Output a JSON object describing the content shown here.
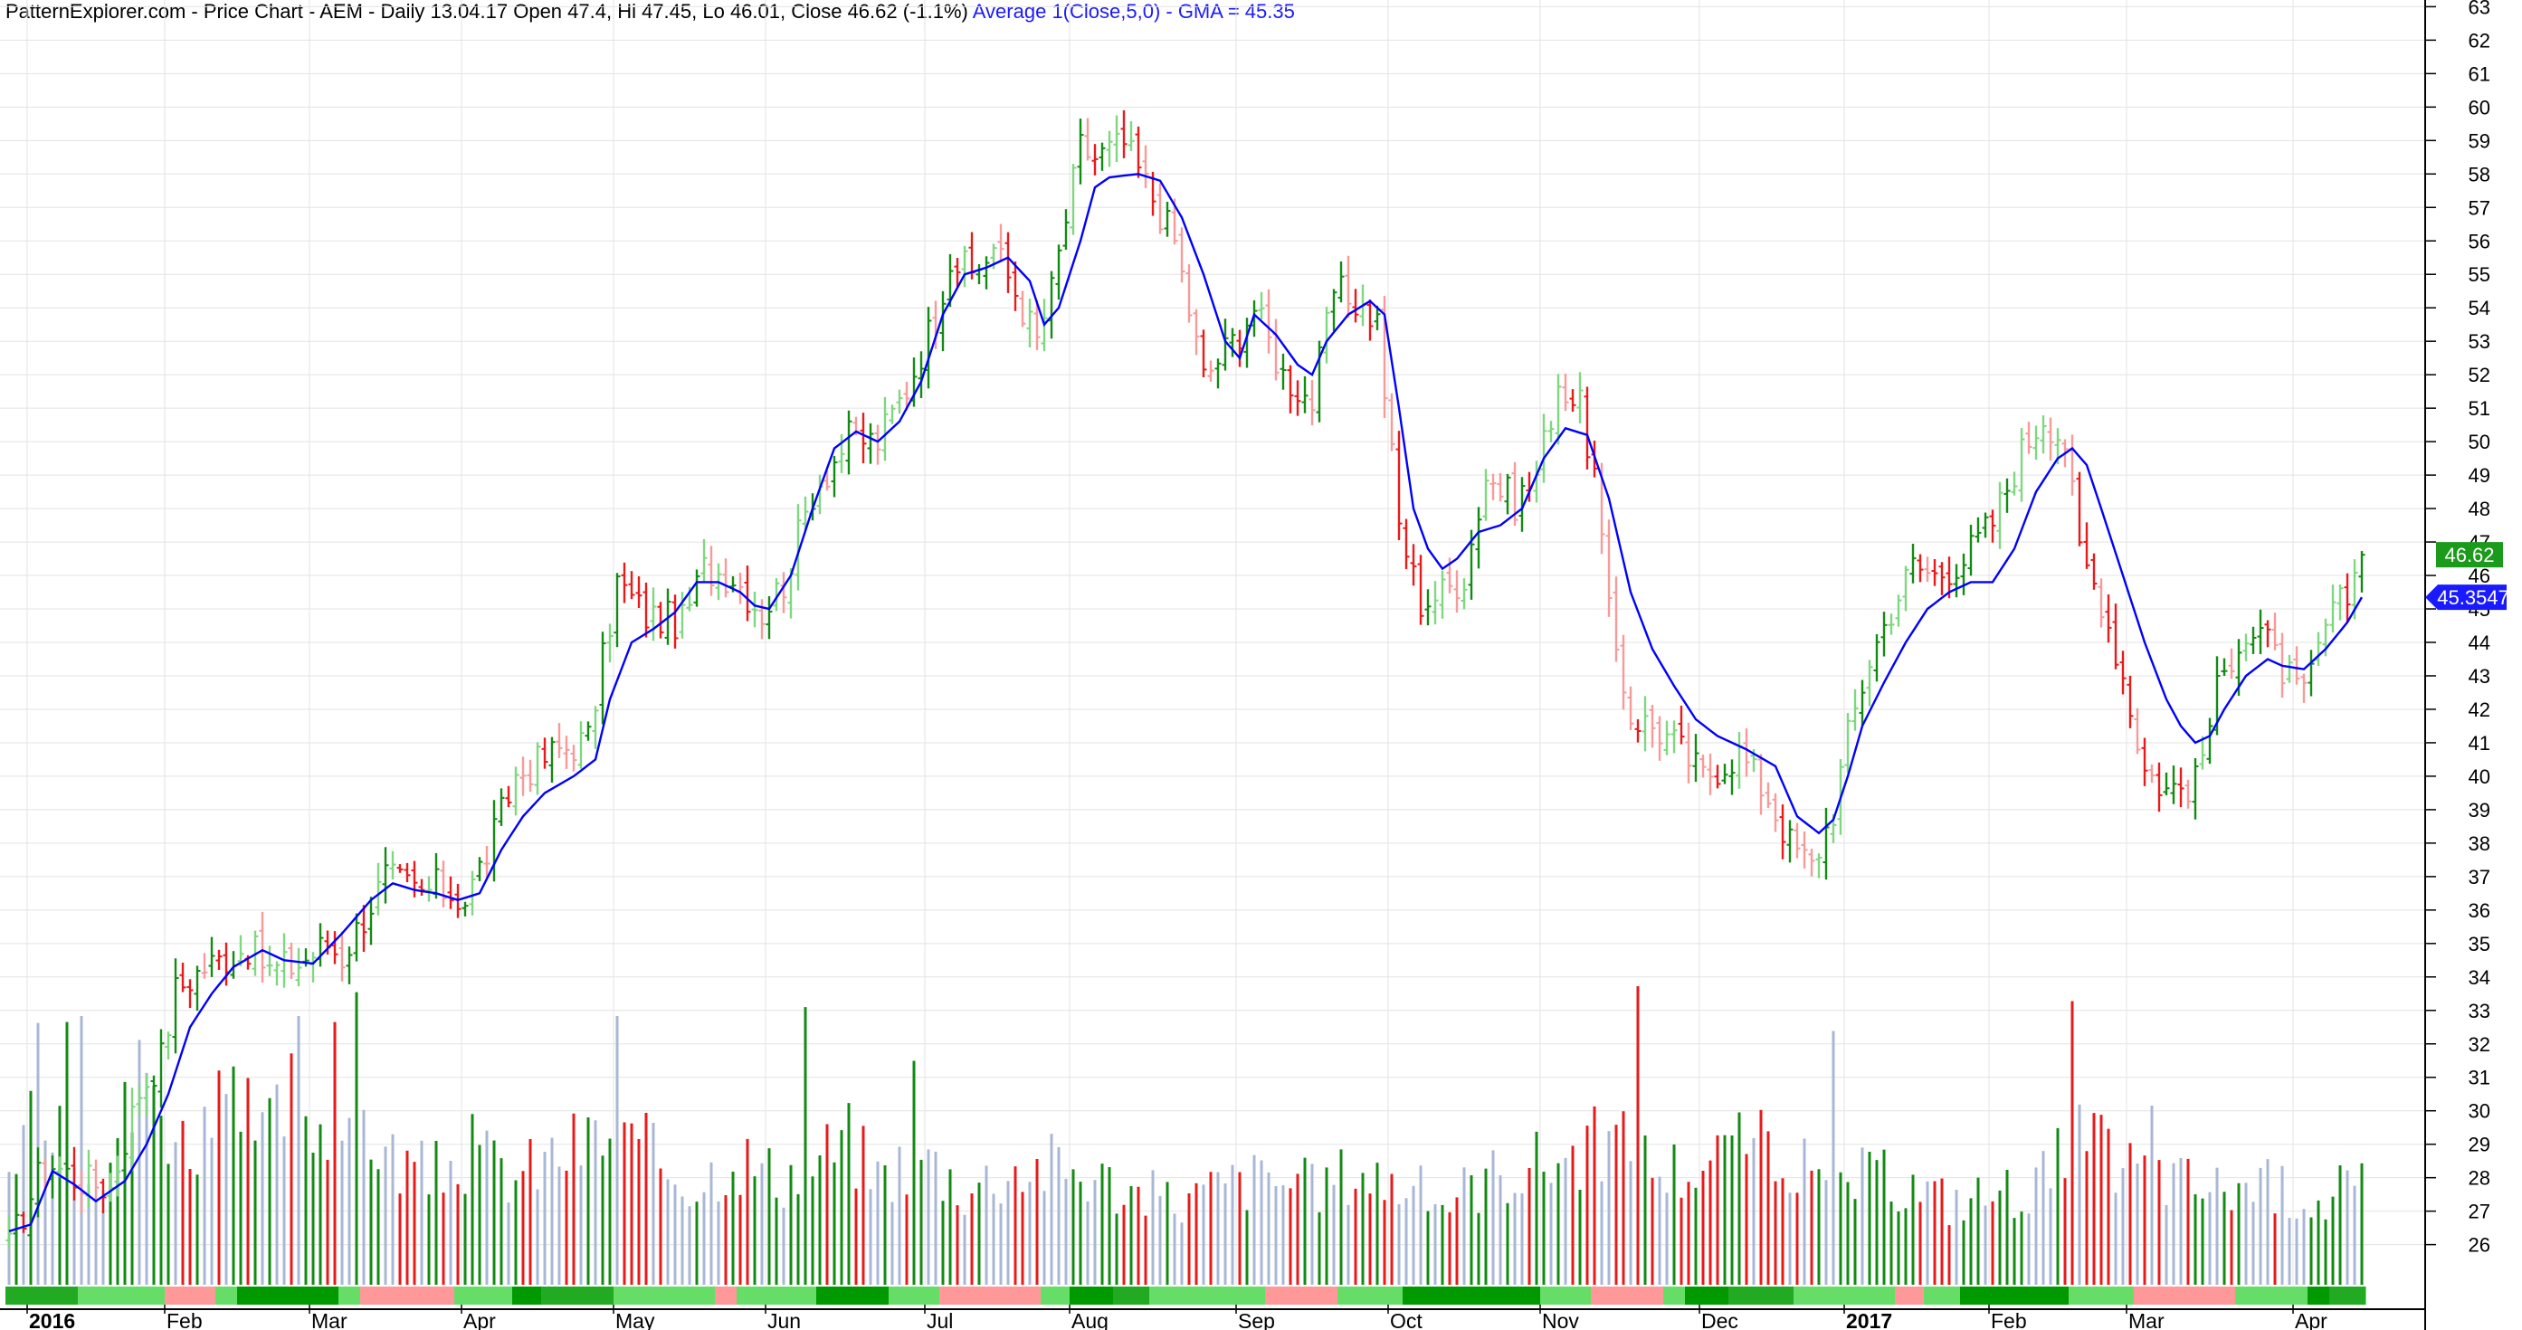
{
  "title": {
    "prefix": "PatternExplorer.com - Price Chart - AEM - Daily 13.04.17 Open 47.4, Hi 47.45, Lo 46.01, Close 46.62 (-1.1%)",
    "ma": "Average 1(Close,5,0) - GMA = 45.35"
  },
  "chart_data": {
    "type": "ohlc_bar",
    "title": "PatternExplorer.com - Price Chart - AEM - Daily",
    "ylim": [
      24.8,
      63.2
    ],
    "y_ticks": [
      26,
      27,
      28,
      29,
      30,
      31,
      32,
      33,
      34,
      35,
      36,
      37,
      38,
      39,
      40,
      41,
      42,
      43,
      44,
      45,
      46,
      47,
      48,
      49,
      50,
      51,
      52,
      53,
      54,
      55,
      56,
      57,
      58,
      59,
      60,
      61,
      62,
      63
    ],
    "month_labels": [
      {
        "label": "2016",
        "bar": 3
      },
      {
        "label": "Feb",
        "bar": 22
      },
      {
        "label": "Mar",
        "bar": 42
      },
      {
        "label": "Apr",
        "bar": 63
      },
      {
        "label": "May",
        "bar": 84
      },
      {
        "label": "Jun",
        "bar": 105
      },
      {
        "label": "Jul",
        "bar": 127
      },
      {
        "label": "Aug",
        "bar": 147
      },
      {
        "label": "Sep",
        "bar": 170
      },
      {
        "label": "Oct",
        "bar": 191
      },
      {
        "label": "Nov",
        "bar": 212
      },
      {
        "label": "Dec",
        "bar": 234
      },
      {
        "label": "2017",
        "bar": 254
      },
      {
        "label": "Feb",
        "bar": 274
      },
      {
        "label": "Mar",
        "bar": 293
      },
      {
        "label": "Apr",
        "bar": 316
      }
    ],
    "keypoints": [
      [
        0,
        25.9
      ],
      [
        4,
        28.0
      ],
      [
        6,
        28.4
      ],
      [
        9,
        28.0
      ],
      [
        14,
        27.7
      ],
      [
        18,
        30.6
      ],
      [
        21,
        31.6
      ],
      [
        23,
        33.6
      ],
      [
        27,
        34.3
      ],
      [
        30,
        34.6
      ],
      [
        33,
        34.9
      ],
      [
        36,
        34.2
      ],
      [
        40,
        34.4
      ],
      [
        44,
        35.0
      ],
      [
        46,
        34.6
      ],
      [
        52,
        37.0
      ],
      [
        57,
        36.5
      ],
      [
        59,
        36.7
      ],
      [
        63,
        36.3
      ],
      [
        66,
        37.7
      ],
      [
        70,
        40.0
      ],
      [
        76,
        40.8
      ],
      [
        80,
        41.1
      ],
      [
        84,
        45.8
      ],
      [
        88,
        44.8
      ],
      [
        93,
        44.6
      ],
      [
        96,
        46.2
      ],
      [
        100,
        46.0
      ],
      [
        104,
        44.9
      ],
      [
        107,
        45.8
      ],
      [
        111,
        48.5
      ],
      [
        116,
        50.1
      ],
      [
        120,
        50.0
      ],
      [
        124,
        51.6
      ],
      [
        128,
        53.8
      ],
      [
        130,
        55.5
      ],
      [
        133,
        55.0
      ],
      [
        136,
        55.8
      ],
      [
        139,
        54.5
      ],
      [
        142,
        53.0
      ],
      [
        144,
        54.5
      ],
      [
        148,
        58.8
      ],
      [
        150,
        58.5
      ],
      [
        154,
        58.9
      ],
      [
        158,
        57.3
      ],
      [
        161,
        56.0
      ],
      [
        165,
        51.9
      ],
      [
        169,
        53.0
      ],
      [
        172,
        54.0
      ],
      [
        176,
        52.0
      ],
      [
        180,
        51.2
      ],
      [
        183,
        54.5
      ],
      [
        186,
        54.2
      ],
      [
        189,
        53.6
      ],
      [
        192,
        47.5
      ],
      [
        195,
        45.2
      ],
      [
        198,
        45.5
      ],
      [
        201,
        46.0
      ],
      [
        204,
        49.0
      ],
      [
        208,
        48.2
      ],
      [
        211,
        49.0
      ],
      [
        214,
        51.8
      ],
      [
        217,
        51.0
      ],
      [
        219,
        49.0
      ],
      [
        221,
        44.8
      ],
      [
        224,
        41.8
      ],
      [
        227,
        41.5
      ],
      [
        230,
        41.0
      ],
      [
        234,
        40.0
      ],
      [
        239,
        40.7
      ],
      [
        243,
        39.4
      ],
      [
        246,
        38.0
      ],
      [
        249,
        37.3
      ],
      [
        252,
        39.0
      ],
      [
        254,
        41.2
      ],
      [
        257,
        43.5
      ],
      [
        260,
        45.0
      ],
      [
        263,
        46.3
      ],
      [
        266,
        46.0
      ],
      [
        270,
        46.5
      ],
      [
        274,
        47.6
      ],
      [
        278,
        49.7
      ],
      [
        281,
        50.8
      ],
      [
        284,
        50.0
      ],
      [
        286,
        46.7
      ],
      [
        289,
        45.3
      ],
      [
        292,
        43.0
      ],
      [
        295,
        40.2
      ],
      [
        298,
        39.6
      ],
      [
        302,
        39.8
      ],
      [
        305,
        42.5
      ],
      [
        308,
        44.2
      ],
      [
        311,
        44.3
      ],
      [
        314,
        43.2
      ],
      [
        317,
        42.3
      ],
      [
        320,
        44.5
      ],
      [
        323,
        45.4
      ],
      [
        325,
        46.62
      ]
    ],
    "ma_keypoints": [
      [
        0,
        26.4
      ],
      [
        3,
        26.6
      ],
      [
        6,
        28.2
      ],
      [
        9,
        27.8
      ],
      [
        12,
        27.3
      ],
      [
        16,
        27.9
      ],
      [
        19,
        29.0
      ],
      [
        22,
        30.5
      ],
      [
        25,
        32.5
      ],
      [
        28,
        33.5
      ],
      [
        31,
        34.3
      ],
      [
        35,
        34.8
      ],
      [
        38,
        34.5
      ],
      [
        42,
        34.4
      ],
      [
        46,
        35.3
      ],
      [
        50,
        36.3
      ],
      [
        53,
        36.8
      ],
      [
        56,
        36.6
      ],
      [
        59,
        36.5
      ],
      [
        62,
        36.3
      ],
      [
        65,
        36.5
      ],
      [
        68,
        37.8
      ],
      [
        71,
        38.8
      ],
      [
        74,
        39.5
      ],
      [
        78,
        40.0
      ],
      [
        81,
        40.5
      ],
      [
        83,
        42.3
      ],
      [
        86,
        44.0
      ],
      [
        89,
        44.4
      ],
      [
        92,
        44.9
      ],
      [
        95,
        45.8
      ],
      [
        98,
        45.8
      ],
      [
        101,
        45.5
      ],
      [
        103,
        45.1
      ],
      [
        105,
        45.0
      ],
      [
        108,
        46.0
      ],
      [
        111,
        48.0
      ],
      [
        114,
        49.8
      ],
      [
        117,
        50.3
      ],
      [
        120,
        50.0
      ],
      [
        123,
        50.6
      ],
      [
        126,
        51.8
      ],
      [
        129,
        53.8
      ],
      [
        132,
        55.0
      ],
      [
        135,
        55.2
      ],
      [
        138,
        55.5
      ],
      [
        141,
        54.8
      ],
      [
        143,
        53.5
      ],
      [
        145,
        54.0
      ],
      [
        148,
        56.0
      ],
      [
        150,
        57.6
      ],
      [
        152,
        57.9
      ],
      [
        156,
        58.0
      ],
      [
        159,
        57.8
      ],
      [
        162,
        56.7
      ],
      [
        165,
        55.0
      ],
      [
        168,
        53.0
      ],
      [
        170,
        52.5
      ],
      [
        172,
        53.8
      ],
      [
        175,
        53.2
      ],
      [
        178,
        52.3
      ],
      [
        180,
        52.0
      ],
      [
        182,
        53.0
      ],
      [
        185,
        53.8
      ],
      [
        188,
        54.2
      ],
      [
        190,
        53.8
      ],
      [
        192,
        51.0
      ],
      [
        194,
        48.0
      ],
      [
        196,
        46.8
      ],
      [
        198,
        46.2
      ],
      [
        200,
        46.5
      ],
      [
        203,
        47.3
      ],
      [
        206,
        47.5
      ],
      [
        209,
        48.0
      ],
      [
        212,
        49.5
      ],
      [
        215,
        50.4
      ],
      [
        218,
        50.2
      ],
      [
        221,
        48.3
      ],
      [
        224,
        45.5
      ],
      [
        227,
        43.8
      ],
      [
        230,
        42.7
      ],
      [
        233,
        41.7
      ],
      [
        236,
        41.2
      ],
      [
        240,
        40.8
      ],
      [
        244,
        40.3
      ],
      [
        247,
        38.8
      ],
      [
        250,
        38.3
      ],
      [
        252,
        38.7
      ],
      [
        254,
        40.0
      ],
      [
        256,
        41.5
      ],
      [
        259,
        42.8
      ],
      [
        262,
        44.0
      ],
      [
        265,
        45.0
      ],
      [
        268,
        45.5
      ],
      [
        271,
        45.8
      ],
      [
        274,
        45.8
      ],
      [
        277,
        46.8
      ],
      [
        280,
        48.5
      ],
      [
        283,
        49.5
      ],
      [
        285,
        49.8
      ],
      [
        287,
        49.3
      ],
      [
        289,
        48.0
      ],
      [
        292,
        46.0
      ],
      [
        295,
        44.0
      ],
      [
        298,
        42.3
      ],
      [
        300,
        41.5
      ],
      [
        302,
        41.0
      ],
      [
        304,
        41.2
      ],
      [
        306,
        42.0
      ],
      [
        309,
        43.0
      ],
      [
        312,
        43.5
      ],
      [
        314,
        43.3
      ],
      [
        317,
        43.2
      ],
      [
        320,
        43.8
      ],
      [
        323,
        44.6
      ],
      [
        325,
        45.35
      ]
    ],
    "volume_keypoints": [
      [
        0,
        0.45
      ],
      [
        4,
        0.85
      ],
      [
        8,
        0.75
      ],
      [
        12,
        0.5
      ],
      [
        16,
        0.7
      ],
      [
        20,
        0.8
      ],
      [
        24,
        0.6
      ],
      [
        30,
        0.72
      ],
      [
        36,
        0.62
      ],
      [
        40,
        0.85
      ],
      [
        44,
        0.6
      ],
      [
        48,
        0.75
      ],
      [
        52,
        0.55
      ],
      [
        58,
        0.45
      ],
      [
        64,
        0.55
      ],
      [
        70,
        0.45
      ],
      [
        76,
        0.55
      ],
      [
        82,
        0.62
      ],
      [
        88,
        0.55
      ],
      [
        95,
        0.42
      ],
      [
        100,
        0.55
      ],
      [
        106,
        0.45
      ],
      [
        110,
        0.5
      ],
      [
        116,
        0.6
      ],
      [
        120,
        0.45
      ],
      [
        126,
        0.55
      ],
      [
        132,
        0.4
      ],
      [
        138,
        0.48
      ],
      [
        144,
        0.5
      ],
      [
        150,
        0.45
      ],
      [
        156,
        0.38
      ],
      [
        162,
        0.35
      ],
      [
        168,
        0.42
      ],
      [
        174,
        0.45
      ],
      [
        180,
        0.4
      ],
      [
        186,
        0.48
      ],
      [
        192,
        0.42
      ],
      [
        198,
        0.35
      ],
      [
        204,
        0.45
      ],
      [
        210,
        0.5
      ],
      [
        216,
        0.55
      ],
      [
        222,
        0.6
      ],
      [
        228,
        0.48
      ],
      [
        234,
        0.5
      ],
      [
        240,
        0.58
      ],
      [
        246,
        0.55
      ],
      [
        250,
        0.4
      ],
      [
        256,
        0.45
      ],
      [
        262,
        0.42
      ],
      [
        268,
        0.35
      ],
      [
        274,
        0.38
      ],
      [
        280,
        0.42
      ],
      [
        286,
        0.6
      ],
      [
        292,
        0.5
      ],
      [
        298,
        0.45
      ],
      [
        304,
        0.4
      ],
      [
        310,
        0.42
      ],
      [
        316,
        0.38
      ],
      [
        320,
        0.35
      ],
      [
        325,
        0.4
      ]
    ],
    "volume_spikes": {
      "8": 0.88,
      "10": 0.9,
      "18": 0.82,
      "40": 0.9,
      "45": 0.88,
      "48": 0.98,
      "84": 0.9,
      "110": 0.93,
      "125": 0.75,
      "225": 1.0,
      "238": 0.5,
      "252": 0.85,
      "285": 0.95,
      "296": 0.6,
      "322": 0.4
    },
    "ribbon_pattern": [
      "#22aa22",
      "#66dd66",
      "#66dd66",
      "#ff9999",
      "#66dd66",
      "#009900",
      "#009900",
      "#66dd66",
      "#ff9999",
      "#ff9999",
      "#66dd66",
      "#009900"
    ],
    "last_close": "46.62",
    "last_ma": "45.3547"
  },
  "colors": {
    "strong_up": "#138a13",
    "weak_up": "#7fd77f",
    "weak_down": "#f79a9a",
    "strong_down": "#e81a1a",
    "ma": "#0000ff",
    "grid": "#e3e3e3",
    "vol_neutral": "#a9b7d6",
    "close_badge": "#1c9a1c",
    "ma_badge": "#1a1aff"
  }
}
